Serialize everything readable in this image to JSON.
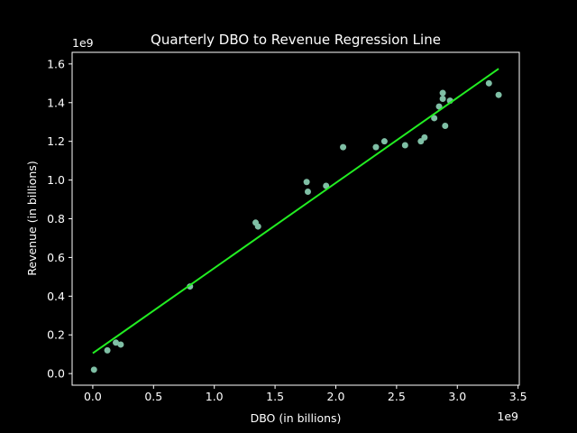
{
  "chart_data": {
    "type": "scatter",
    "title": "Quarterly DBO to Revenue Regression Line",
    "xlabel": "DBO (in billions)",
    "ylabel": "Revenue (in billions)",
    "x_offset_label": "1e9",
    "y_offset_label": "1e9",
    "xlim": [
      -170000000.0,
      3510000000.0
    ],
    "ylim": [
      -60000000.0,
      1660000000.0
    ],
    "x_ticks": [
      0,
      500000000.0,
      1000000000.0,
      1500000000.0,
      2000000000.0,
      2500000000.0,
      3000000000.0,
      3500000000.0
    ],
    "x_tick_labels": [
      "0.0",
      "0.5",
      "1.0",
      "1.5",
      "2.0",
      "2.5",
      "3.0",
      "3.5"
    ],
    "y_ticks": [
      0,
      200000000.0,
      400000000.0,
      600000000.0,
      800000000.0,
      1000000000.0,
      1200000000.0,
      1400000000.0,
      1600000000.0
    ],
    "y_tick_labels": [
      "0.0",
      "0.2",
      "0.4",
      "0.6",
      "0.8",
      "1.0",
      "1.2",
      "1.4",
      "1.6"
    ],
    "grid": false,
    "points": [
      {
        "x": 10000000.0,
        "y": 20000000.0
      },
      {
        "x": 120000000.0,
        "y": 120000000.0
      },
      {
        "x": 190000000.0,
        "y": 160000000.0
      },
      {
        "x": 230000000.0,
        "y": 150000000.0
      },
      {
        "x": 800000000.0,
        "y": 450000000.0
      },
      {
        "x": 1340000000.0,
        "y": 780000000.0
      },
      {
        "x": 1360000000.0,
        "y": 760000000.0
      },
      {
        "x": 1760000000.0,
        "y": 990000000.0
      },
      {
        "x": 1770000000.0,
        "y": 940000000.0
      },
      {
        "x": 1920000000.0,
        "y": 970000000.0
      },
      {
        "x": 2060000000.0,
        "y": 1170000000.0
      },
      {
        "x": 2330000000.0,
        "y": 1170000000.0
      },
      {
        "x": 2400000000.0,
        "y": 1200000000.0
      },
      {
        "x": 2570000000.0,
        "y": 1180000000.0
      },
      {
        "x": 2700000000.0,
        "y": 1200000000.0
      },
      {
        "x": 2730000000.0,
        "y": 1220000000.0
      },
      {
        "x": 2810000000.0,
        "y": 1320000000.0
      },
      {
        "x": 2850000000.0,
        "y": 1380000000.0
      },
      {
        "x": 2880000000.0,
        "y": 1420000000.0
      },
      {
        "x": 2880000000.0,
        "y": 1450000000.0
      },
      {
        "x": 2900000000.0,
        "y": 1280000000.0
      },
      {
        "x": 2940000000.0,
        "y": 1410000000.0
      },
      {
        "x": 3260000000.0,
        "y": 1500000000.0
      },
      {
        "x": 3340000000.0,
        "y": 1440000000.0
      }
    ],
    "regression_line": {
      "x": [
        0.0,
        3340000000.0
      ],
      "y": [
        105000000.0,
        1575000000.0
      ]
    },
    "colors": {
      "background": "#000000",
      "points": "#7fbfa5",
      "regression_line": "#22ee22",
      "axes": "#ffffff"
    }
  }
}
